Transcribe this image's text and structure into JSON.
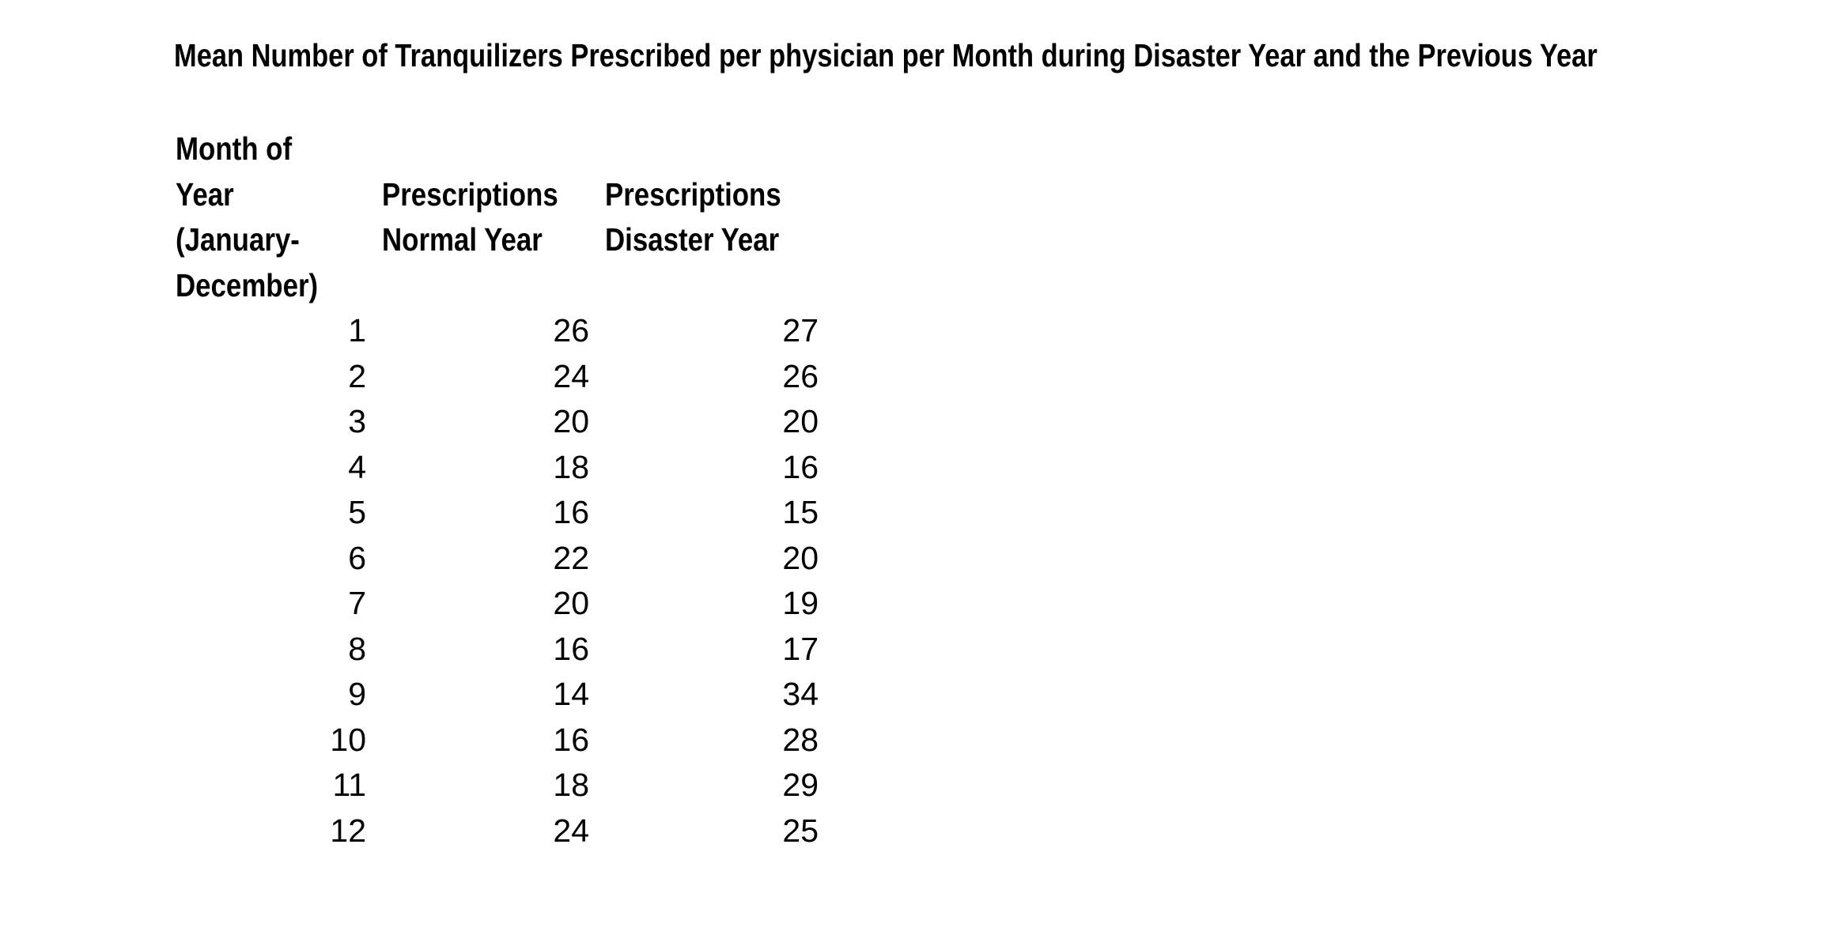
{
  "title": "Mean Number of Tranquilizers Prescribed per physician per Month during Disaster Year and the Previous Year",
  "table": {
    "columns": [
      {
        "header": "Month of\nYear\n(January-\nDecember)"
      },
      {
        "header": "Prescriptions\nNormal Year"
      },
      {
        "header": "Prescriptions\nDisaster Year"
      }
    ],
    "rows": [
      {
        "month": "1",
        "normal": "26",
        "disaster": "27"
      },
      {
        "month": "2",
        "normal": "24",
        "disaster": "26"
      },
      {
        "month": "3",
        "normal": "20",
        "disaster": "20"
      },
      {
        "month": "4",
        "normal": "18",
        "disaster": "16"
      },
      {
        "month": "5",
        "normal": "16",
        "disaster": "15"
      },
      {
        "month": "6",
        "normal": "22",
        "disaster": "20"
      },
      {
        "month": "7",
        "normal": "20",
        "disaster": "19"
      },
      {
        "month": "8",
        "normal": "16",
        "disaster": "17"
      },
      {
        "month": "9",
        "normal": "14",
        "disaster": "34"
      },
      {
        "month": "10",
        "normal": "16",
        "disaster": "28"
      },
      {
        "month": "11",
        "normal": "18",
        "disaster": "29"
      },
      {
        "month": "12",
        "normal": "24",
        "disaster": "25"
      }
    ]
  },
  "chart_data": {
    "type": "table",
    "title": "Mean Number of Tranquilizers Prescribed per physician per Month during Disaster Year and the Previous Year",
    "categories": [
      1,
      2,
      3,
      4,
      5,
      6,
      7,
      8,
      9,
      10,
      11,
      12
    ],
    "series": [
      {
        "name": "Prescriptions Normal Year",
        "values": [
          26,
          24,
          20,
          18,
          16,
          22,
          20,
          16,
          14,
          16,
          18,
          24
        ]
      },
      {
        "name": "Prescriptions Disaster Year",
        "values": [
          27,
          26,
          20,
          16,
          15,
          20,
          19,
          17,
          34,
          28,
          29,
          25
        ]
      }
    ],
    "xlabel": "Month of Year (January-December)",
    "ylabel": ""
  },
  "colors": {
    "background": "#ffffff",
    "text": "#000000"
  }
}
